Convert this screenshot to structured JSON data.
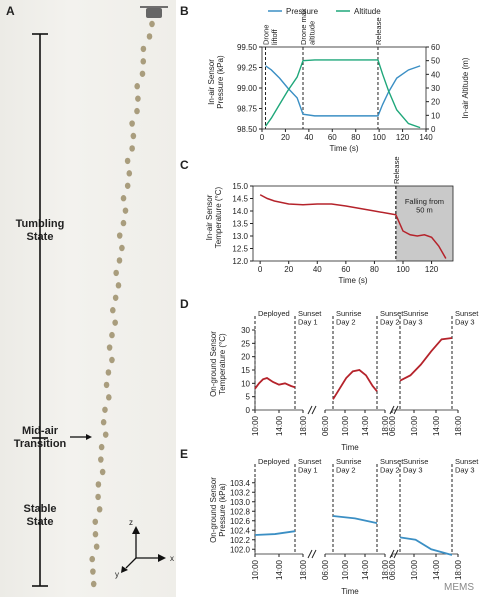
{
  "panelA": {
    "letter": "A",
    "tumbling": "Tumbling\nState",
    "midair": "Mid-air\nTransition",
    "stable": "Stable\nState",
    "axis_z": "z",
    "axis_x": "x",
    "axis_y": "y"
  },
  "panelB": {
    "letter": "B"
  },
  "panelC": {
    "letter": "C"
  },
  "panelD": {
    "letter": "D"
  },
  "panelE": {
    "letter": "E"
  },
  "watermark": "MEMS",
  "colors": {
    "pressure": "#3b8fc4",
    "altitude": "#1fa77a",
    "temp": "#b5232b",
    "shade": "#c9c9c9"
  },
  "chart_data": [
    {
      "panel": "B",
      "type": "line",
      "legend": [
        "Pressure",
        "Altitude"
      ],
      "xlabel": "Time (s)",
      "ylabel": "In-air Sensor\nPressure (kPa)",
      "y2label": "In-air Altitude (m)",
      "xlim": [
        0,
        140
      ],
      "ylim": [
        98.5,
        99.5
      ],
      "y2lim": [
        0,
        60
      ],
      "xticks": [
        0,
        20,
        40,
        60,
        80,
        100,
        120,
        140
      ],
      "yticks": [
        98.5,
        98.75,
        99.0,
        99.25,
        99.5
      ],
      "y2ticks": [
        0,
        10,
        20,
        30,
        40,
        50,
        60
      ],
      "annotations": [
        {
          "x": 3,
          "text": "Drone\nliftoff"
        },
        {
          "x": 35,
          "text": "Drone max\naltitude"
        },
        {
          "x": 99,
          "text": "Release"
        }
      ],
      "series": [
        {
          "name": "Pressure",
          "axis": "y",
          "x": [
            3,
            8,
            15,
            22,
            30,
            35,
            45,
            60,
            80,
            99,
            103,
            108,
            115,
            125,
            135
          ],
          "y": [
            99.27,
            99.22,
            99.12,
            99.0,
            98.88,
            98.68,
            98.66,
            98.66,
            98.66,
            98.66,
            98.8,
            98.95,
            99.12,
            99.22,
            99.27
          ]
        },
        {
          "name": "Altitude",
          "axis": "y2",
          "x": [
            3,
            8,
            15,
            22,
            30,
            35,
            45,
            60,
            80,
            99,
            103,
            108,
            115,
            125,
            135
          ],
          "y": [
            2,
            8,
            18,
            28,
            38,
            50,
            50.5,
            50.5,
            50.5,
            50.5,
            40,
            28,
            14,
            4,
            1
          ]
        }
      ]
    },
    {
      "panel": "C",
      "type": "line",
      "legend_text": "Falling from\n50 m",
      "xlabel": "Time (s)",
      "ylabel": "In-air Sensor\nTemperature (°C)",
      "xlim": [
        -5,
        135
      ],
      "ylim": [
        12.0,
        15.0
      ],
      "xticks": [
        0,
        20,
        40,
        60,
        80,
        100,
        120
      ],
      "yticks": [
        12.0,
        12.5,
        13.0,
        13.5,
        14.0,
        14.5,
        15.0
      ],
      "annotations": [
        {
          "x": 95,
          "text": "Release"
        }
      ],
      "shade": [
        95,
        135
      ],
      "series": [
        {
          "name": "Temperature",
          "x": [
            0,
            5,
            10,
            20,
            30,
            40,
            50,
            60,
            70,
            80,
            90,
            95,
            100,
            105,
            110,
            115,
            120,
            125,
            130
          ],
          "y": [
            14.65,
            14.5,
            14.4,
            14.28,
            14.25,
            14.28,
            14.28,
            14.2,
            14.1,
            14.0,
            13.9,
            13.85,
            13.2,
            13.05,
            13.0,
            13.05,
            12.95,
            12.6,
            12.1
          ]
        }
      ]
    },
    {
      "panel": "D",
      "type": "line",
      "xlabel": "Time",
      "ylabel": "On-ground Sensor\nTemperature (°C)",
      "ylim": [
        0,
        30
      ],
      "yticks": [
        0,
        5,
        10,
        15,
        20,
        25,
        30
      ],
      "segments": [
        {
          "xticks": [
            "10:00",
            "14:00",
            "18:00"
          ],
          "annotations": [
            "Deployed",
            "Sunset\nDay 1"
          ],
          "x": [
            0,
            0.1,
            0.2,
            0.3,
            0.45,
            0.6,
            0.75,
            0.9,
            1.0
          ],
          "y": [
            8,
            10,
            11.5,
            12,
            10.5,
            9.5,
            10,
            9,
            8.5
          ]
        },
        {
          "xticks": [
            "06:00",
            "10:00",
            "14:00",
            "18:00"
          ],
          "annotations": [
            "Sunrise\nDay 2",
            "Sunset\nDay 2"
          ],
          "x": [
            0,
            0.15,
            0.3,
            0.45,
            0.6,
            0.75,
            0.9,
            1.0
          ],
          "y": [
            4,
            8,
            12,
            14.5,
            15,
            13,
            9,
            7
          ]
        },
        {
          "xticks": [
            "06:00",
            "10:00",
            "14:00",
            "18:00"
          ],
          "annotations": [
            "Sunrise\nDay 3",
            "Sunset\nDay 3"
          ],
          "x": [
            0,
            0.2,
            0.4,
            0.6,
            0.8,
            1.0
          ],
          "y": [
            11,
            13,
            17,
            22,
            26.5,
            27
          ]
        }
      ]
    },
    {
      "panel": "E",
      "type": "line",
      "xlabel": "Time",
      "ylabel": "On-ground Sensor\nPressure (kPa)",
      "ylim": [
        101.9,
        103.5
      ],
      "yticks": [
        "102.0",
        "102.2",
        "102.4",
        "102.6",
        "102.8",
        "103.0",
        "103.2",
        "103.4"
      ],
      "segments": [
        {
          "xticks": [
            "10:00",
            "14:00",
            "18:00"
          ],
          "annotations": [
            "Deployed",
            "Sunset\nDay 1"
          ],
          "x": [
            0,
            0.5,
            1.0
          ],
          "y": [
            102.3,
            102.32,
            102.38
          ]
        },
        {
          "xticks": [
            "06:00",
            "10:00",
            "14:00",
            "18:00"
          ],
          "annotations": [
            "Sunrise\nDay 2",
            "Sunset\nDay 2"
          ],
          "x": [
            0,
            0.5,
            1.0
          ],
          "y": [
            102.7,
            102.65,
            102.55
          ]
        },
        {
          "xticks": [
            "06:00",
            "10:00",
            "14:00",
            "18:00"
          ],
          "annotations": [
            "Sunrise\nDay 3",
            "Sunset\nDay 3"
          ],
          "x": [
            0,
            0.3,
            0.6,
            1.0
          ],
          "y": [
            102.25,
            102.2,
            102.0,
            101.88
          ]
        }
      ]
    }
  ]
}
